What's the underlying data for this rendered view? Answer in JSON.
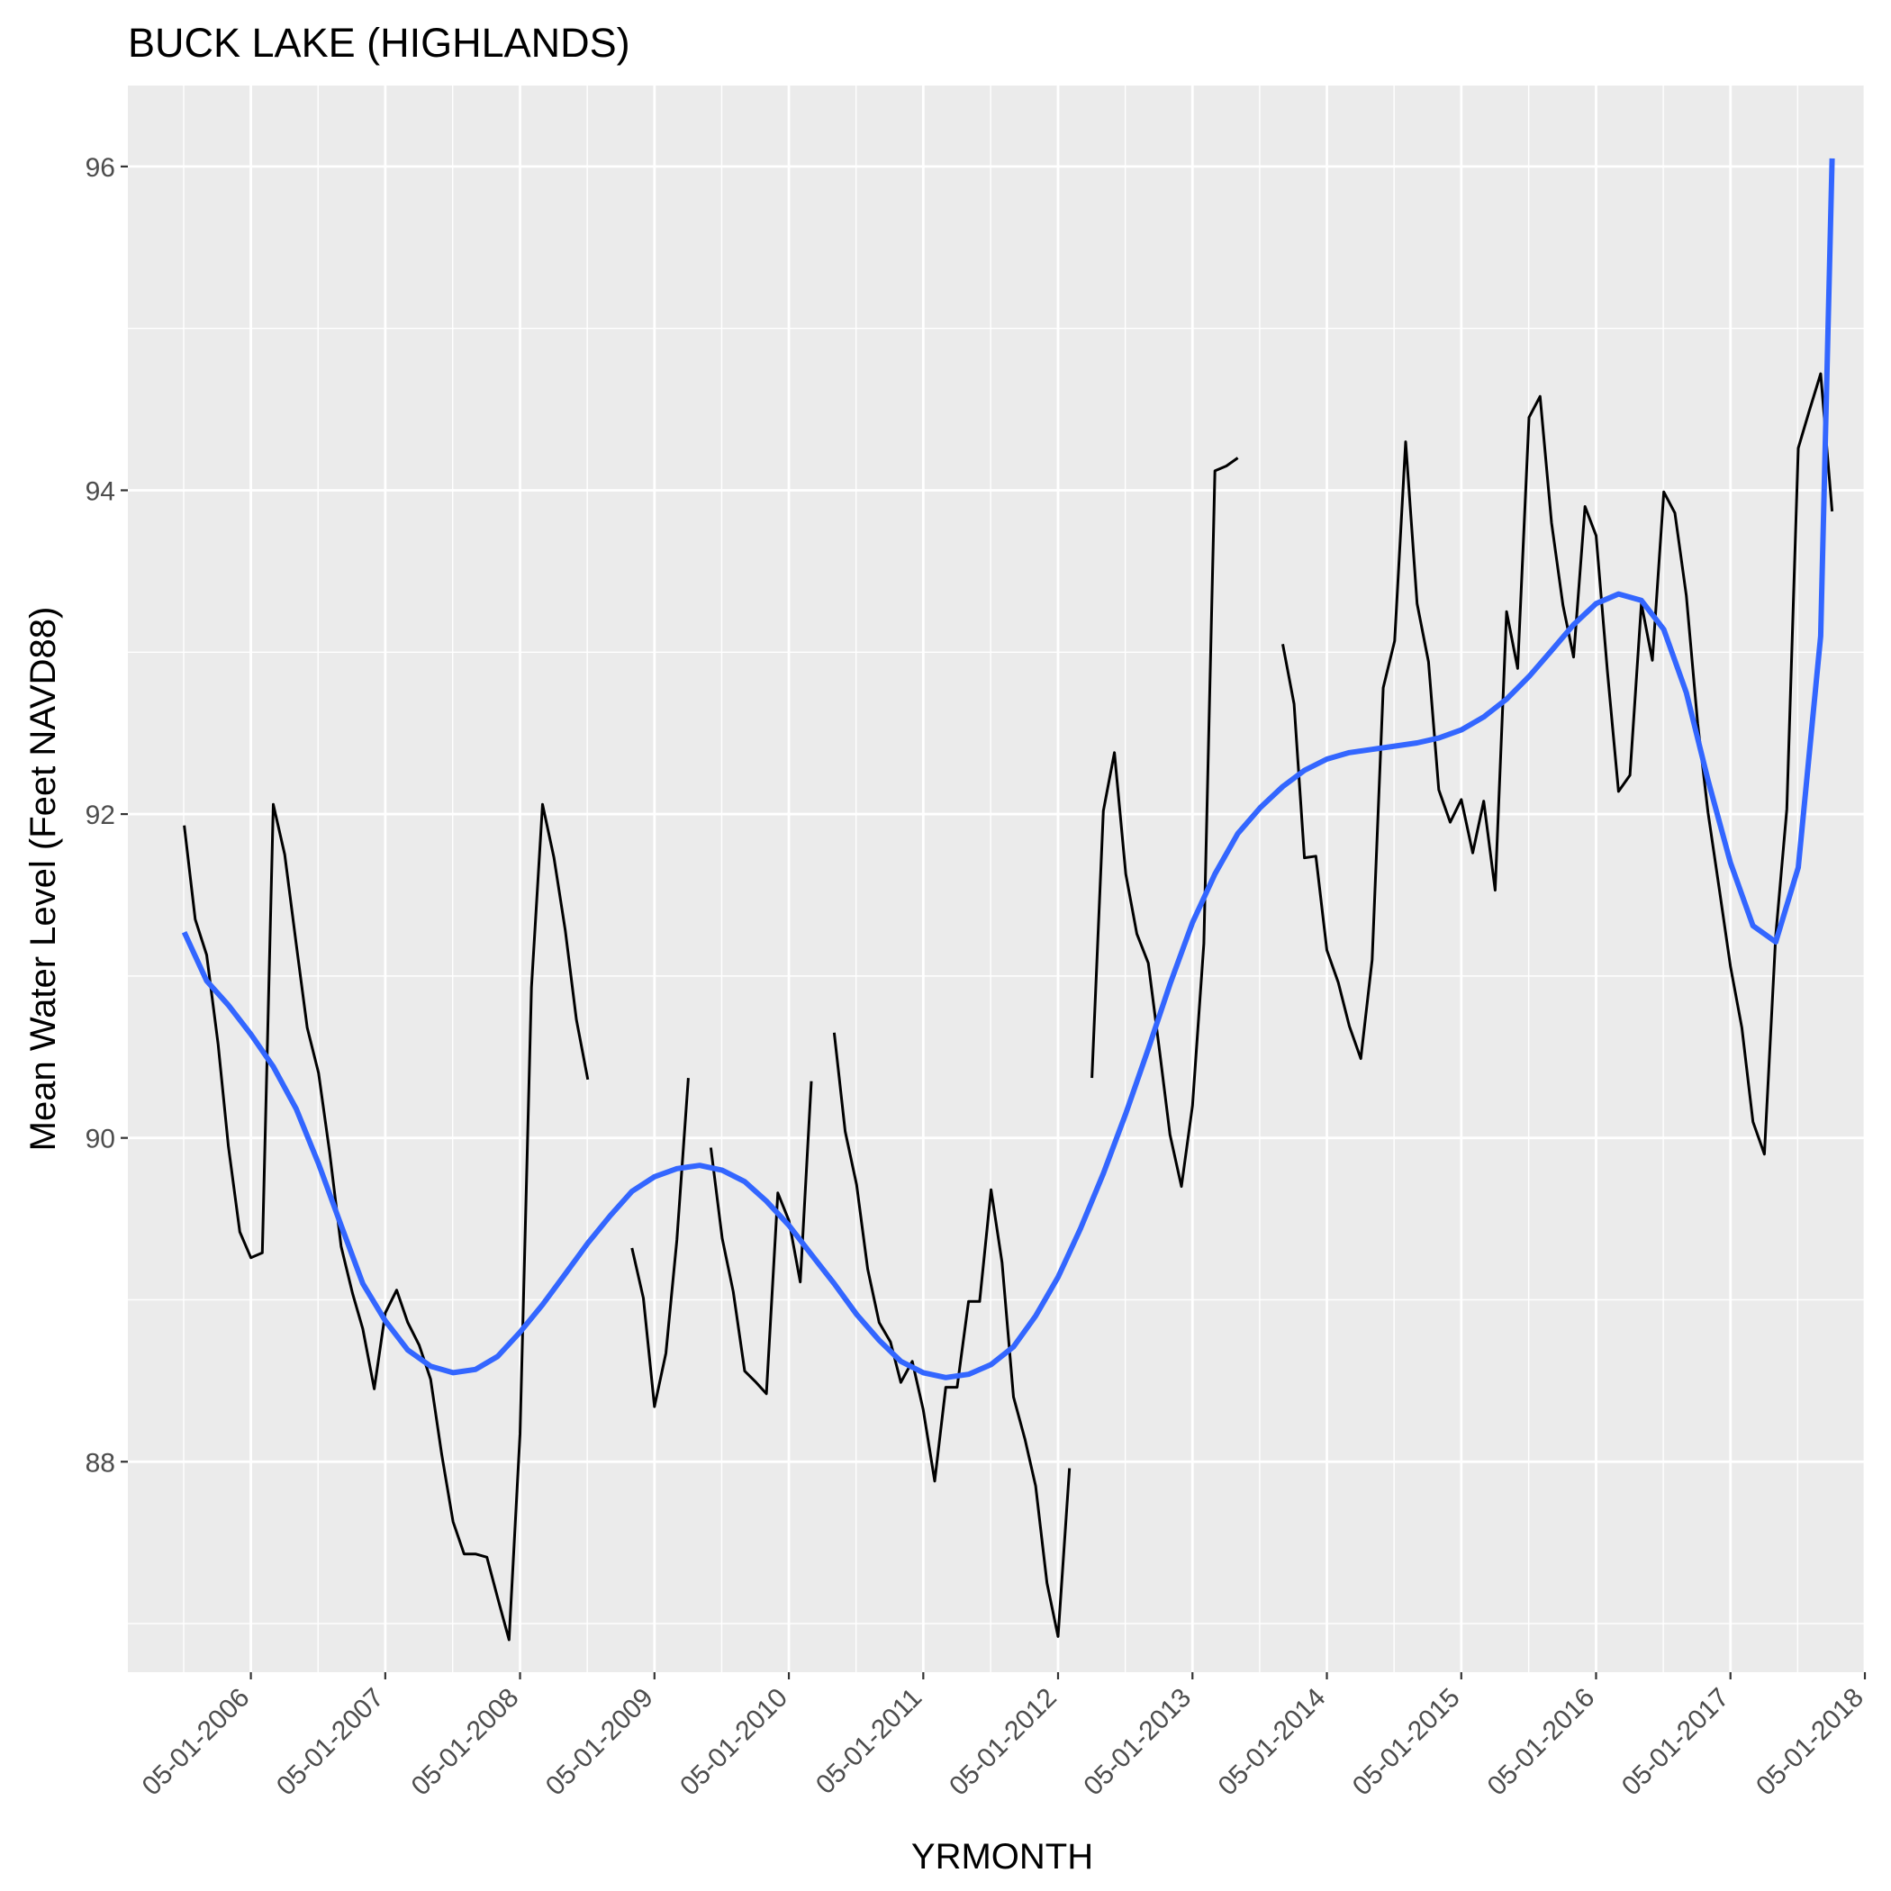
{
  "chart_data": {
    "type": "line",
    "title": "BUCK LAKE (HIGHLANDS)",
    "xlabel": "YRMONTH",
    "ylabel": "Mean Water Level (Feet NAVD88)",
    "x_axis_type": "date",
    "xlim": [
      "2005-06-01",
      "2018-05-01"
    ],
    "ylim": [
      86.7,
      96.5
    ],
    "x_ticks": [
      "05-01-2006",
      "05-01-2007",
      "05-01-2008",
      "05-01-2009",
      "05-01-2010",
      "05-01-2011",
      "05-01-2012",
      "05-01-2013",
      "05-01-2014",
      "05-01-2015",
      "05-01-2016",
      "05-01-2017",
      "05-01-2018"
    ],
    "y_ticks": [
      88,
      90,
      92,
      94,
      96
    ],
    "grid": true,
    "legend": "none",
    "colors": {
      "panel": "#ebebeb",
      "grid": "#ffffff",
      "observed": "#000000",
      "smooth": "#3366ff"
    },
    "series": [
      {
        "style": "observed",
        "segments": [
          [
            [
              "2005-11-01",
              91.93
            ],
            [
              "2005-12-01",
              91.35
            ],
            [
              "2006-01-01",
              91.13
            ],
            [
              "2006-02-01",
              90.58
            ],
            [
              "2006-03-01",
              89.95
            ],
            [
              "2006-04-01",
              89.42
            ],
            [
              "2006-05-01",
              89.26
            ],
            [
              "2006-06-01",
              89.29
            ],
            [
              "2006-07-01",
              92.06
            ],
            [
              "2006-08-01",
              91.75
            ],
            [
              "2006-09-01",
              91.2
            ],
            [
              "2006-10-01",
              90.68
            ],
            [
              "2006-11-01",
              90.4
            ],
            [
              "2006-12-01",
              89.91
            ],
            [
              "2007-01-01",
              89.33
            ],
            [
              "2007-02-01",
              89.04
            ],
            [
              "2007-03-01",
              88.82
            ],
            [
              "2007-04-01",
              88.45
            ],
            [
              "2007-05-01",
              88.92
            ],
            [
              "2007-06-01",
              89.06
            ],
            [
              "2007-07-01",
              88.86
            ],
            [
              "2007-08-01",
              88.72
            ],
            [
              "2007-09-01",
              88.51
            ],
            [
              "2007-10-01",
              88.05
            ],
            [
              "2007-11-01",
              87.63
            ],
            [
              "2007-12-01",
              87.43
            ],
            [
              "2008-01-01",
              87.43
            ],
            [
              "2008-02-01",
              87.41
            ],
            [
              "2008-03-01",
              87.16
            ],
            [
              "2008-04-01",
              86.9
            ],
            [
              "2008-05-01",
              88.17
            ],
            [
              "2008-06-01",
              90.93
            ],
            [
              "2008-07-01",
              92.06
            ],
            [
              "2008-08-01",
              91.73
            ],
            [
              "2008-09-01",
              91.28
            ],
            [
              "2008-10-01",
              90.73
            ],
            [
              "2008-11-01",
              90.36
            ]
          ],
          [
            [
              "2009-03-01",
              89.32
            ],
            [
              "2009-04-01",
              89.01
            ],
            [
              "2009-05-01",
              88.34
            ],
            [
              "2009-06-01",
              88.67
            ],
            [
              "2009-07-01",
              89.37
            ],
            [
              "2009-08-01",
              90.37
            ]
          ],
          [
            [
              "2009-10-01",
              89.94
            ],
            [
              "2009-11-01",
              89.38
            ],
            [
              "2009-12-01",
              89.05
            ],
            [
              "2010-01-01",
              88.56
            ],
            [
              "2010-02-01",
              88.49
            ],
            [
              "2010-03-01",
              88.42
            ],
            [
              "2010-04-01",
              89.66
            ],
            [
              "2010-05-01",
              89.49
            ],
            [
              "2010-06-01",
              89.11
            ],
            [
              "2010-07-01",
              90.35
            ]
          ],
          [
            [
              "2010-09-01",
              90.65
            ],
            [
              "2010-10-01",
              90.04
            ],
            [
              "2010-11-01",
              89.71
            ],
            [
              "2010-12-01",
              89.19
            ],
            [
              "2011-01-01",
              88.86
            ],
            [
              "2011-02-01",
              88.74
            ],
            [
              "2011-03-01",
              88.49
            ],
            [
              "2011-04-01",
              88.62
            ],
            [
              "2011-05-01",
              88.32
            ],
            [
              "2011-06-01",
              87.88
            ],
            [
              "2011-07-01",
              88.46
            ],
            [
              "2011-08-01",
              88.46
            ],
            [
              "2011-09-01",
              88.99
            ],
            [
              "2011-10-01",
              88.99
            ],
            [
              "2011-11-01",
              89.68
            ],
            [
              "2011-12-01",
              89.23
            ],
            [
              "2012-01-01",
              88.4
            ],
            [
              "2012-02-01",
              88.14
            ],
            [
              "2012-03-01",
              87.85
            ],
            [
              "2012-04-01",
              87.25
            ],
            [
              "2012-05-01",
              86.92
            ],
            [
              "2012-06-01",
              87.96
            ]
          ],
          [
            [
              "2012-08-01",
              90.37
            ],
            [
              "2012-09-01",
              92.02
            ],
            [
              "2012-10-01",
              92.38
            ],
            [
              "2012-11-01",
              91.63
            ],
            [
              "2012-12-01",
              91.26
            ],
            [
              "2013-01-01",
              91.08
            ],
            [
              "2013-02-01",
              90.53
            ],
            [
              "2013-03-01",
              90.02
            ],
            [
              "2013-04-01",
              89.7
            ],
            [
              "2013-05-01",
              90.2
            ],
            [
              "2013-06-01",
              91.2
            ],
            [
              "2013-07-01",
              94.12
            ],
            [
              "2013-08-01",
              94.15
            ],
            [
              "2013-09-01",
              94.2
            ]
          ],
          [
            [
              "2014-01-01",
              93.05
            ],
            [
              "2014-02-01",
              92.68
            ],
            [
              "2014-03-01",
              91.73
            ],
            [
              "2014-04-01",
              91.74
            ],
            [
              "2014-05-01",
              91.16
            ],
            [
              "2014-06-01",
              90.96
            ],
            [
              "2014-07-01",
              90.69
            ],
            [
              "2014-08-01",
              90.49
            ],
            [
              "2014-09-01",
              91.1
            ],
            [
              "2014-10-01",
              92.78
            ],
            [
              "2014-11-01",
              93.07
            ],
            [
              "2014-12-01",
              94.3
            ],
            [
              "2015-01-01",
              93.3
            ],
            [
              "2015-02-01",
              92.94
            ],
            [
              "2015-03-01",
              92.15
            ],
            [
              "2015-04-01",
              91.95
            ],
            [
              "2015-05-01",
              92.09
            ],
            [
              "2015-06-01",
              91.76
            ],
            [
              "2015-07-01",
              92.08
            ],
            [
              "2015-08-01",
              91.53
            ],
            [
              "2015-09-01",
              93.25
            ],
            [
              "2015-10-01",
              92.9
            ],
            [
              "2015-11-01",
              94.45
            ],
            [
              "2015-12-01",
              94.58
            ],
            [
              "2016-01-01",
              93.8
            ],
            [
              "2016-02-01",
              93.29
            ],
            [
              "2016-03-01",
              92.97
            ],
            [
              "2016-04-01",
              93.9
            ],
            [
              "2016-05-01",
              93.72
            ],
            [
              "2016-06-01",
              92.88
            ],
            [
              "2016-07-01",
              92.14
            ],
            [
              "2016-08-01",
              92.24
            ],
            [
              "2016-09-01",
              93.3
            ],
            [
              "2016-10-01",
              92.95
            ],
            [
              "2016-11-01",
              93.99
            ],
            [
              "2016-12-01",
              93.86
            ],
            [
              "2017-01-01",
              93.35
            ],
            [
              "2017-02-01",
              92.56
            ],
            [
              "2017-03-01",
              92.01
            ],
            [
              "2017-04-01",
              91.53
            ],
            [
              "2017-05-01",
              91.06
            ],
            [
              "2017-06-01",
              90.68
            ],
            [
              "2017-07-01",
              90.1
            ],
            [
              "2017-08-01",
              89.9
            ],
            [
              "2017-09-01",
              91.25
            ],
            [
              "2017-10-01",
              92.03
            ],
            [
              "2017-11-01",
              94.26
            ],
            [
              "2017-12-01",
              94.49
            ],
            [
              "2018-01-01",
              94.72
            ],
            [
              "2018-02-01",
              93.87
            ]
          ]
        ]
      },
      {
        "style": "smooth",
        "points": [
          [
            "2005-11-01",
            91.27
          ],
          [
            "2006-01-01",
            90.97
          ],
          [
            "2006-03-01",
            90.82
          ],
          [
            "2006-05-01",
            90.64
          ],
          [
            "2006-07-01",
            90.44
          ],
          [
            "2006-09-01",
            90.18
          ],
          [
            "2006-11-01",
            89.84
          ],
          [
            "2007-01-01",
            89.46
          ],
          [
            "2007-03-01",
            89.1
          ],
          [
            "2007-05-01",
            88.87
          ],
          [
            "2007-07-01",
            88.69
          ],
          [
            "2007-09-01",
            88.59
          ],
          [
            "2007-11-01",
            88.55
          ],
          [
            "2008-01-01",
            88.57
          ],
          [
            "2008-03-01",
            88.65
          ],
          [
            "2008-05-01",
            88.8
          ],
          [
            "2008-07-01",
            88.97
          ],
          [
            "2008-09-01",
            89.16
          ],
          [
            "2008-11-01",
            89.35
          ],
          [
            "2009-01-01",
            89.52
          ],
          [
            "2009-03-01",
            89.67
          ],
          [
            "2009-05-01",
            89.76
          ],
          [
            "2009-07-01",
            89.81
          ],
          [
            "2009-09-01",
            89.83
          ],
          [
            "2009-11-01",
            89.8
          ],
          [
            "2010-01-01",
            89.73
          ],
          [
            "2010-03-01",
            89.61
          ],
          [
            "2010-05-01",
            89.46
          ],
          [
            "2010-07-01",
            89.28
          ],
          [
            "2010-09-01",
            89.1
          ],
          [
            "2010-11-01",
            88.91
          ],
          [
            "2011-01-01",
            88.75
          ],
          [
            "2011-03-01",
            88.62
          ],
          [
            "2011-05-01",
            88.55
          ],
          [
            "2011-07-01",
            88.52
          ],
          [
            "2011-09-01",
            88.54
          ],
          [
            "2011-11-01",
            88.6
          ],
          [
            "2012-01-01",
            88.71
          ],
          [
            "2012-03-01",
            88.9
          ],
          [
            "2012-05-01",
            89.14
          ],
          [
            "2012-07-01",
            89.44
          ],
          [
            "2012-09-01",
            89.78
          ],
          [
            "2012-11-01",
            90.15
          ],
          [
            "2013-01-01",
            90.55
          ],
          [
            "2013-03-01",
            90.95
          ],
          [
            "2013-05-01",
            91.33
          ],
          [
            "2013-07-01",
            91.63
          ],
          [
            "2013-09-01",
            91.88
          ],
          [
            "2013-11-01",
            92.04
          ],
          [
            "2014-01-01",
            92.17
          ],
          [
            "2014-03-01",
            92.27
          ],
          [
            "2014-05-01",
            92.34
          ],
          [
            "2014-07-01",
            92.38
          ],
          [
            "2014-09-01",
            92.4
          ],
          [
            "2014-11-01",
            92.42
          ],
          [
            "2015-01-01",
            92.44
          ],
          [
            "2015-03-01",
            92.47
          ],
          [
            "2015-05-01",
            92.52
          ],
          [
            "2015-07-01",
            92.6
          ],
          [
            "2015-09-01",
            92.71
          ],
          [
            "2015-11-01",
            92.85
          ],
          [
            "2016-01-01",
            93.01
          ],
          [
            "2016-03-01",
            93.17
          ],
          [
            "2016-05-01",
            93.3
          ],
          [
            "2016-07-01",
            93.36
          ],
          [
            "2016-09-01",
            93.32
          ],
          [
            "2016-11-01",
            93.14
          ],
          [
            "2017-01-01",
            92.75
          ],
          [
            "2017-03-01",
            92.21
          ],
          [
            "2017-05-01",
            91.7
          ],
          [
            "2017-07-01",
            91.31
          ],
          [
            "2017-09-01",
            91.21
          ],
          [
            "2017-11-01",
            91.67
          ],
          [
            "2018-01-01",
            93.1
          ],
          [
            "2018-02-01",
            96.05
          ]
        ]
      }
    ]
  }
}
